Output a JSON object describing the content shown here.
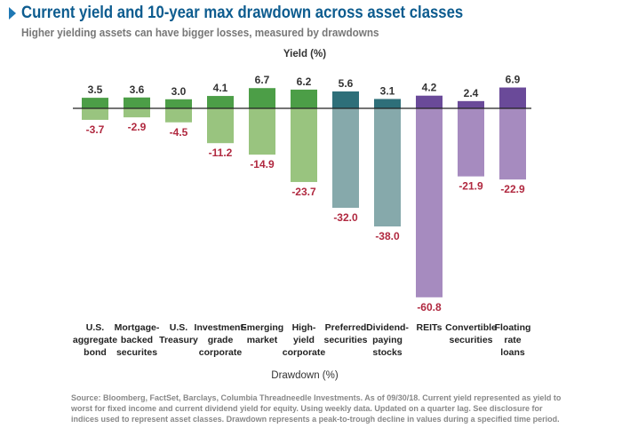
{
  "header": {
    "title": "Current yield and 10-year max drawdown across asset classes",
    "subtitle": "Higher yielding assets can have bigger losses, measured by drawdowns"
  },
  "chart_data": {
    "type": "bar",
    "title": "Current yield and 10-year max drawdown across asset classes",
    "subtitle": "Higher yielding assets can have bigger losses, measured by drawdowns",
    "top_label": "Yield (%)",
    "bottom_label": "Drawdown (%)",
    "categories": [
      [
        "U.S.",
        "aggregate",
        "bond"
      ],
      [
        "Mortgage-",
        "backed",
        "securites"
      ],
      [
        "U.S.",
        "Treasury"
      ],
      [
        "Investment-",
        "grade",
        "corporate"
      ],
      [
        "Emerging",
        "market"
      ],
      [
        "High-",
        "yield",
        "corporate"
      ],
      [
        "Preferred",
        "securities"
      ],
      [
        "Dividend-",
        "paying",
        "stocks"
      ],
      [
        "REITs"
      ],
      [
        "Convertible",
        "securities"
      ],
      [
        "Floating",
        "rate",
        "loans"
      ]
    ],
    "series": [
      {
        "name": "Yield (%)",
        "values": [
          3.5,
          3.6,
          3.0,
          4.1,
          6.7,
          6.2,
          5.6,
          3.1,
          4.2,
          2.4,
          6.9
        ]
      },
      {
        "name": "Drawdown (%)",
        "values": [
          -3.7,
          -2.9,
          -4.5,
          -11.2,
          -14.9,
          -23.7,
          -32.0,
          -38.0,
          -60.8,
          -21.9,
          -22.9
        ]
      }
    ],
    "colors": {
      "yield": [
        "#4c9e47",
        "#4c9e47",
        "#4c9e47",
        "#4c9e47",
        "#4c9e47",
        "#4c9e47",
        "#2e6f79",
        "#2e6f79",
        "#6a4a99",
        "#6a4a99",
        "#6a4a99"
      ],
      "drawdown": [
        "#99c47f",
        "#99c47f",
        "#99c47f",
        "#99c47f",
        "#99c47f",
        "#99c47f",
        "#86a9ab",
        "#86a9ab",
        "#a68bbf",
        "#a68bbf",
        "#a68bbf"
      ],
      "negative_label": "#b0283f"
    }
  },
  "source": "Source: Bloomberg, FactSet, Barclays, Columbia Threadneedle Investments. As of 09/30/18. Current yield represented as yield to worst for fixed income and current dividend yield for equity. Using weekly data. Updated on a quarter lag. See disclosure for indices used to represent asset classes. Drawdown represents a peak-to-trough decline in values during a specified time period."
}
